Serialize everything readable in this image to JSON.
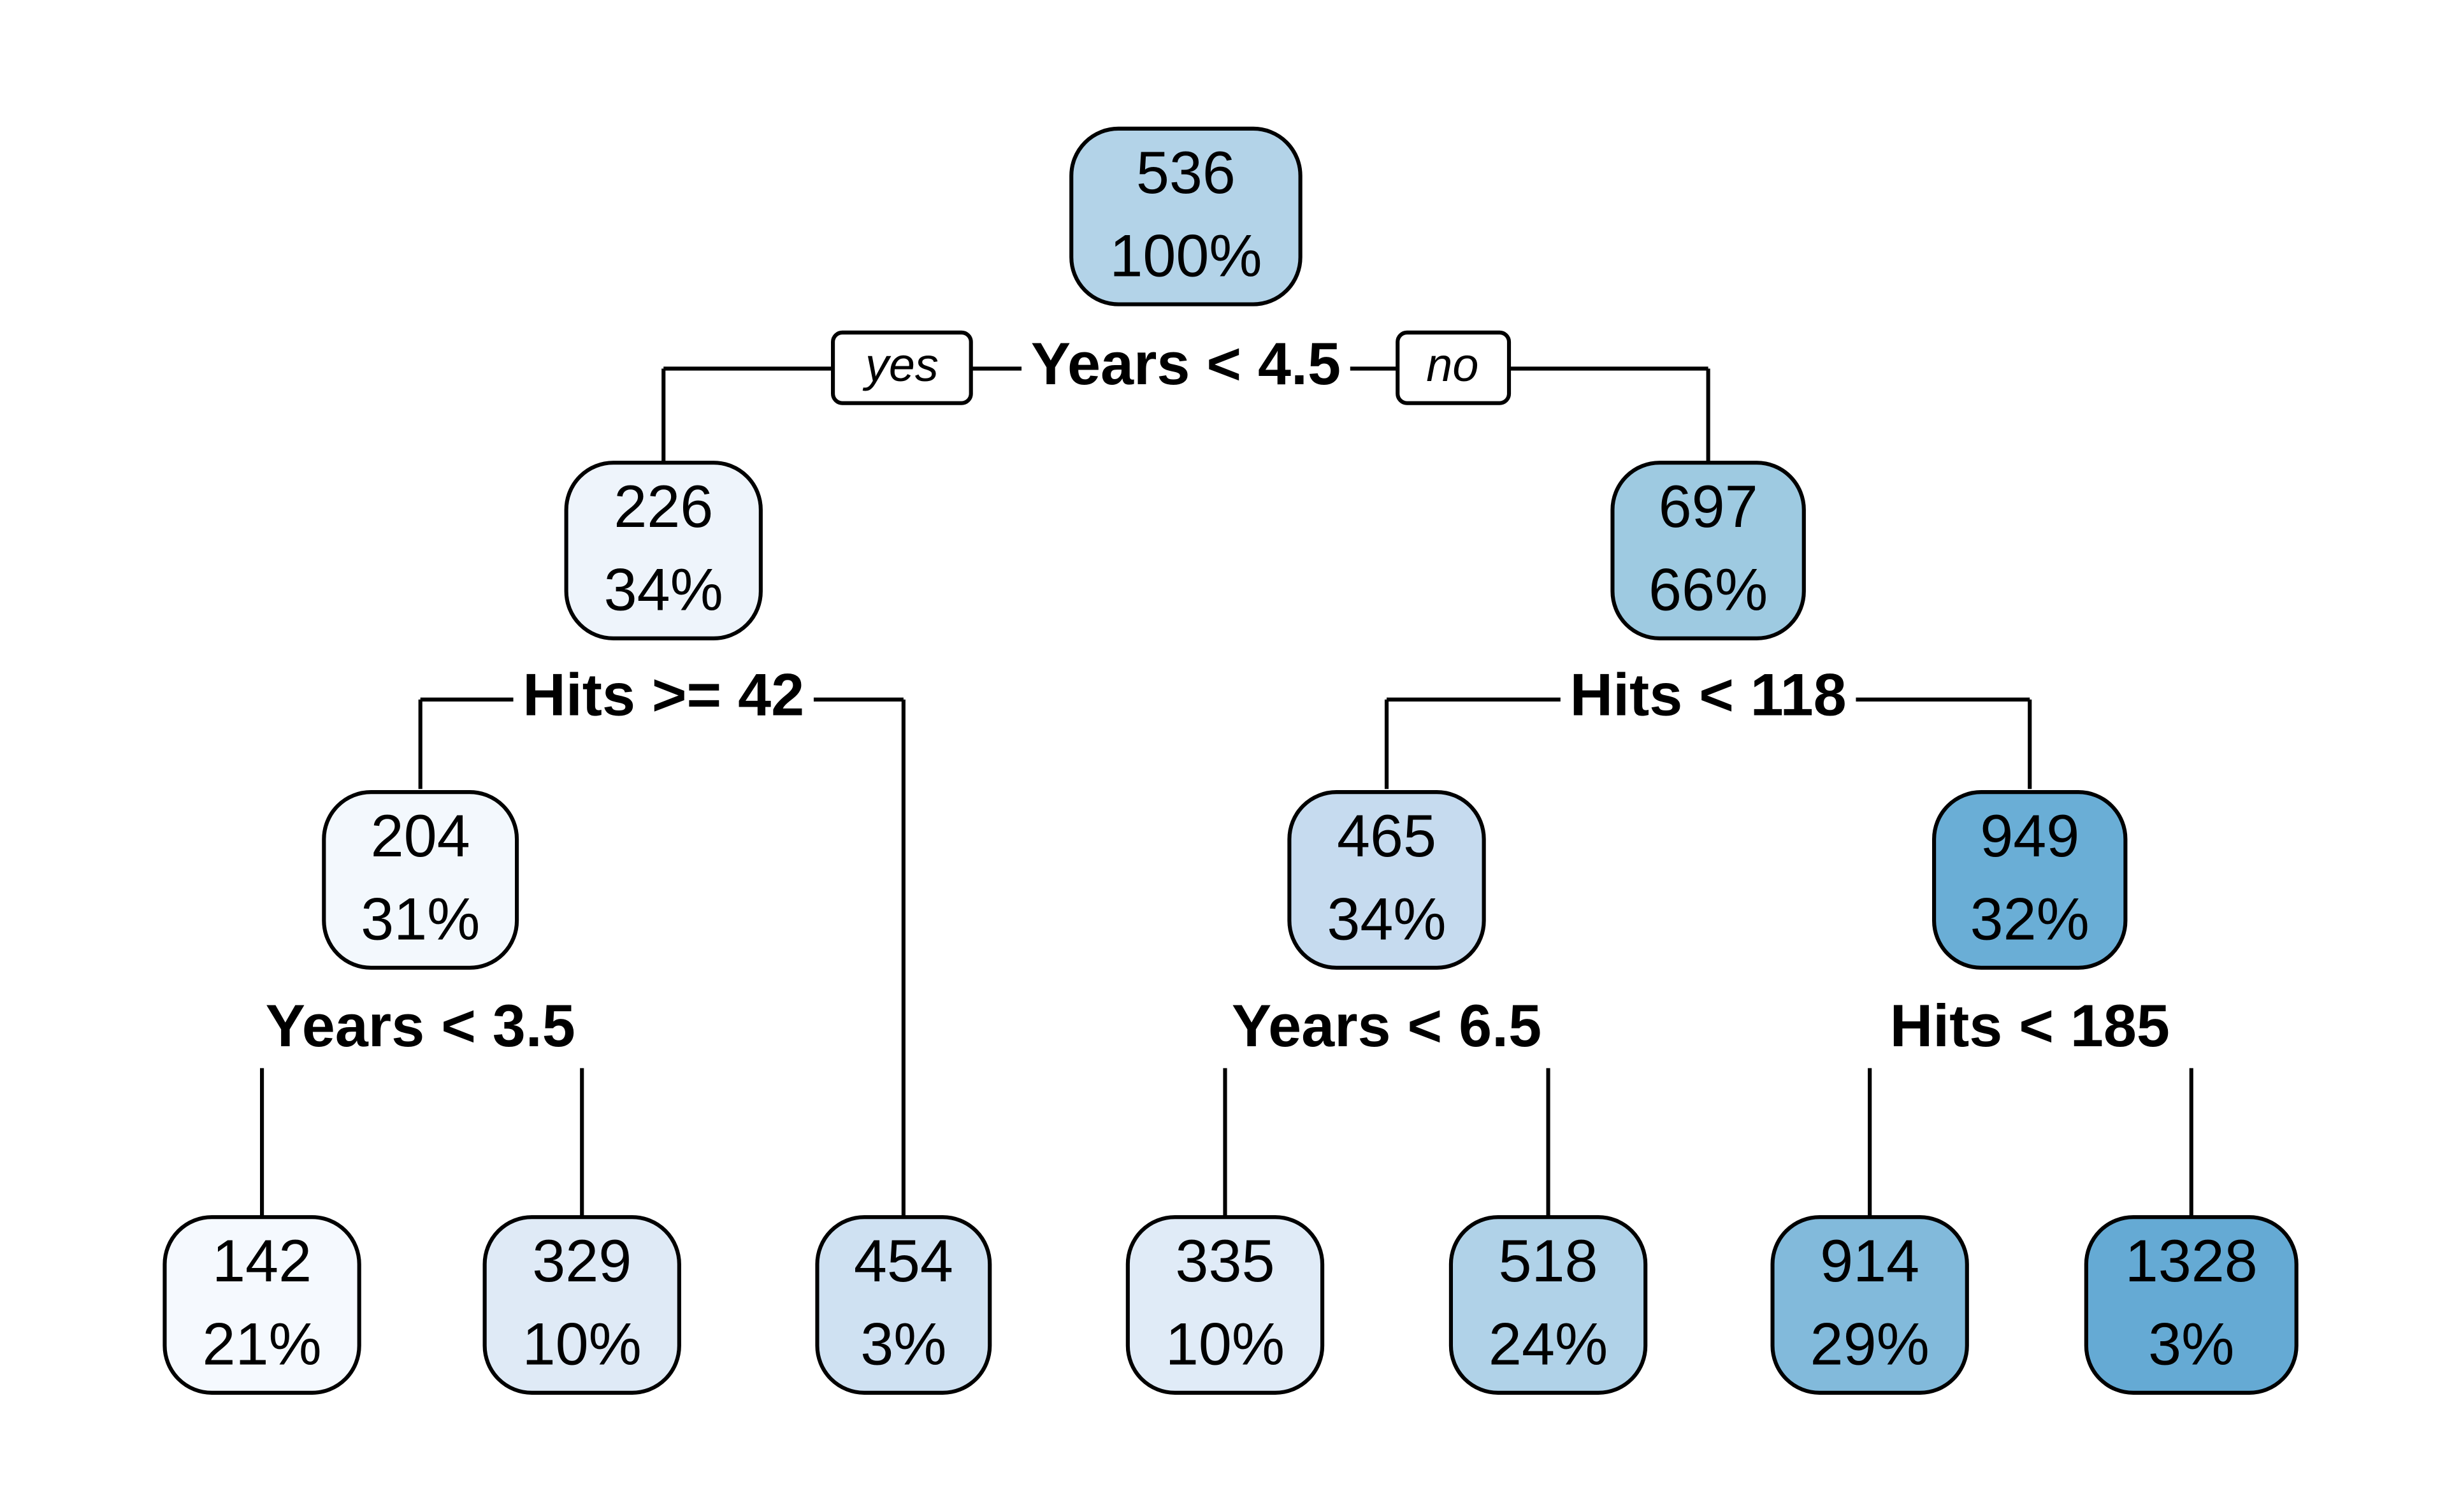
{
  "nodes": [
    {
      "value": "536",
      "percent": "100%",
      "color": "#b3d3e8"
    },
    {
      "value": "226",
      "percent": "34%",
      "color": "#eef4fb"
    },
    {
      "value": "697",
      "percent": "66%",
      "color": "#9ecae1"
    },
    {
      "value": "204",
      "percent": "31%",
      "color": "#f3f8fd"
    },
    {
      "value": "465",
      "percent": "34%",
      "color": "#c6dbef"
    },
    {
      "value": "949",
      "percent": "32%",
      "color": "#6aaed6"
    },
    {
      "value": "142",
      "percent": "21%",
      "color": "#f5f9fe"
    },
    {
      "value": "329",
      "percent": "10%",
      "color": "#dfeaf6"
    },
    {
      "value": "454",
      "percent": "3%",
      "color": "#cfe1f2"
    },
    {
      "value": "335",
      "percent": "10%",
      "color": "#e0ebf7"
    },
    {
      "value": "518",
      "percent": "24%",
      "color": "#b0d2e8"
    },
    {
      "value": "914",
      "percent": "29%",
      "color": "#82badb"
    },
    {
      "value": "1328",
      "percent": "3%",
      "color": "#65aad4"
    }
  ],
  "splits": [
    "Years < 4.5",
    "Hits >= 42",
    "Hits < 118",
    "Years < 3.5",
    "Years < 6.5",
    "Hits < 185"
  ],
  "branch_labels": {
    "yes": "yes",
    "no": "no"
  }
}
